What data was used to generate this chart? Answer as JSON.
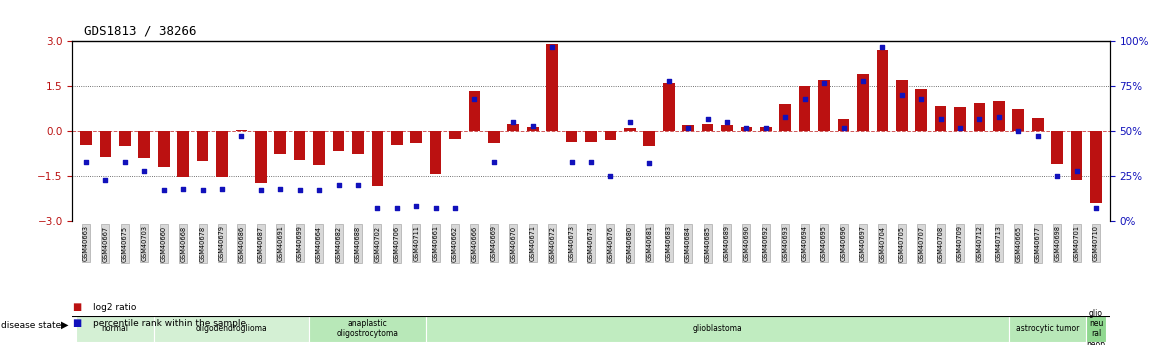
{
  "title": "GDS1813 / 38266",
  "samples": [
    "GSM40663",
    "GSM40667",
    "GSM40675",
    "GSM40703",
    "GSM40660",
    "GSM40668",
    "GSM40678",
    "GSM40679",
    "GSM40686",
    "GSM40687",
    "GSM40691",
    "GSM40699",
    "GSM40664",
    "GSM40682",
    "GSM40688",
    "GSM40702",
    "GSM40706",
    "GSM40711",
    "GSM40661",
    "GSM40662",
    "GSM40666",
    "GSM40669",
    "GSM40670",
    "GSM40671",
    "GSM40672",
    "GSM40673",
    "GSM40674",
    "GSM40676",
    "GSM40680",
    "GSM40681",
    "GSM40683",
    "GSM40684",
    "GSM40685",
    "GSM40689",
    "GSM40690",
    "GSM40692",
    "GSM40693",
    "GSM40694",
    "GSM40695",
    "GSM40696",
    "GSM40697",
    "GSM40704",
    "GSM40705",
    "GSM40707",
    "GSM40708",
    "GSM40709",
    "GSM40712",
    "GSM40713",
    "GSM40665",
    "GSM40677",
    "GSM40698",
    "GSM40701",
    "GSM40710"
  ],
  "log2_ratio": [
    -0.45,
    -0.85,
    -0.5,
    -0.9,
    -1.2,
    -1.55,
    -1.0,
    -1.55,
    0.05,
    -1.75,
    -0.75,
    -0.95,
    -1.15,
    -0.65,
    -0.75,
    -1.85,
    -0.45,
    -0.4,
    -1.45,
    -0.25,
    1.35,
    -0.4,
    0.25,
    0.15,
    2.9,
    -0.35,
    -0.35,
    -0.3,
    0.1,
    -0.5,
    1.6,
    0.2,
    0.25,
    0.2,
    0.15,
    0.15,
    0.9,
    1.5,
    1.7,
    0.4,
    1.9,
    2.7,
    1.7,
    1.4,
    0.85,
    0.8,
    0.95,
    1.0,
    0.75,
    0.45,
    -1.1,
    -1.65,
    -2.4
  ],
  "percentile": [
    33,
    23,
    33,
    28,
    17,
    18,
    17,
    18,
    47,
    17,
    18,
    17,
    17,
    20,
    20,
    7,
    7,
    8,
    7,
    7,
    68,
    33,
    55,
    53,
    97,
    33,
    33,
    25,
    55,
    32,
    78,
    52,
    57,
    55,
    52,
    52,
    58,
    68,
    77,
    52,
    78,
    97,
    70,
    68,
    57,
    52,
    57,
    58,
    50,
    47,
    25,
    28,
    7
  ],
  "groups": [
    {
      "label": "normal",
      "start": 0,
      "end": 4,
      "color": "#d4f0d4"
    },
    {
      "label": "oligodendroglioma",
      "start": 4,
      "end": 12,
      "color": "#d4f0d4"
    },
    {
      "label": "anaplastic\noligostrocytoma",
      "start": 12,
      "end": 18,
      "color": "#b8e8b8"
    },
    {
      "label": "glioblastoma",
      "start": 18,
      "end": 48,
      "color": "#c0ecc0"
    },
    {
      "label": "astrocytic tumor",
      "start": 48,
      "end": 52,
      "color": "#b8e8b8"
    },
    {
      "label": "glio\nneu\nral\nneop",
      "start": 52,
      "end": 53,
      "color": "#90d890"
    }
  ],
  "ylim_left": [
    -3.0,
    3.0
  ],
  "bar_color": "#bb1111",
  "dot_color": "#1111bb",
  "left_yticks": [
    -3,
    -1.5,
    0,
    1.5,
    3
  ],
  "right_yticks": [
    0,
    25,
    50,
    75,
    100
  ],
  "bar_width": 0.6
}
